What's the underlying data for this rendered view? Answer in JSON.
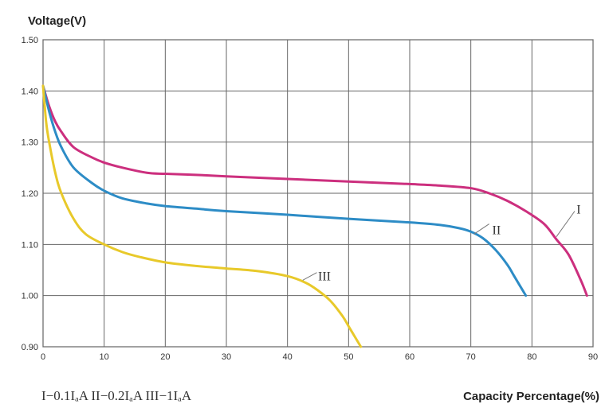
{
  "chart_data": {
    "type": "line",
    "title": "",
    "ylabel": "Voltage(V)",
    "xlabel": "Capacity Percentage(%)",
    "xlim": [
      0,
      90
    ],
    "ylim": [
      0.9,
      1.5
    ],
    "grid": true,
    "x_ticks": [
      0,
      10,
      20,
      30,
      40,
      50,
      60,
      70,
      80,
      90
    ],
    "y_ticks": [
      0.9,
      1.0,
      1.1,
      1.2,
      1.3,
      1.4,
      1.5
    ],
    "x_tick_labels": [
      "0",
      "10",
      "20",
      "30",
      "40",
      "50",
      "60",
      "70",
      "80",
      "90"
    ],
    "y_tick_labels": [
      "0.90",
      "1.00",
      "1.10",
      "1.20",
      "1.30",
      "1.40",
      "1.50"
    ],
    "legend_text": "I−0.1IₐA  II−0.2IₐA  III−1IₐA",
    "series": [
      {
        "name": "I",
        "label_text": "I",
        "color": "#cc2f7e",
        "x": [
          0,
          1,
          2,
          3,
          5,
          8,
          10,
          13,
          17,
          20,
          25,
          30,
          40,
          50,
          60,
          65,
          70,
          73,
          76,
          79,
          82,
          84,
          86,
          88,
          89
        ],
        "y": [
          1.41,
          1.37,
          1.34,
          1.32,
          1.29,
          1.27,
          1.26,
          1.25,
          1.24,
          1.238,
          1.236,
          1.233,
          1.228,
          1.223,
          1.218,
          1.215,
          1.21,
          1.2,
          1.185,
          1.165,
          1.14,
          1.11,
          1.08,
          1.03,
          1.0
        ]
      },
      {
        "name": "II",
        "label_text": "II",
        "color": "#2d8cc6",
        "x": [
          0,
          1,
          2,
          3,
          5,
          8,
          10,
          13,
          17,
          20,
          25,
          30,
          40,
          50,
          60,
          65,
          68,
          70,
          72,
          74,
          76,
          77,
          78,
          79
        ],
        "y": [
          1.41,
          1.36,
          1.32,
          1.29,
          1.25,
          1.22,
          1.205,
          1.19,
          1.18,
          1.175,
          1.17,
          1.165,
          1.158,
          1.15,
          1.143,
          1.138,
          1.132,
          1.125,
          1.112,
          1.09,
          1.06,
          1.04,
          1.02,
          1.0
        ]
      },
      {
        "name": "III",
        "label_text": "III",
        "color": "#e8c92a",
        "x": [
          0,
          0.5,
          1,
          2,
          3,
          5,
          7,
          10,
          13,
          16,
          20,
          25,
          30,
          35,
          40,
          43,
          45,
          47,
          49,
          50,
          51,
          52
        ],
        "y": [
          1.41,
          1.34,
          1.3,
          1.24,
          1.2,
          1.15,
          1.12,
          1.1,
          1.085,
          1.075,
          1.065,
          1.058,
          1.053,
          1.048,
          1.038,
          1.025,
          1.01,
          0.99,
          0.96,
          0.94,
          0.92,
          0.9
        ]
      }
    ]
  }
}
